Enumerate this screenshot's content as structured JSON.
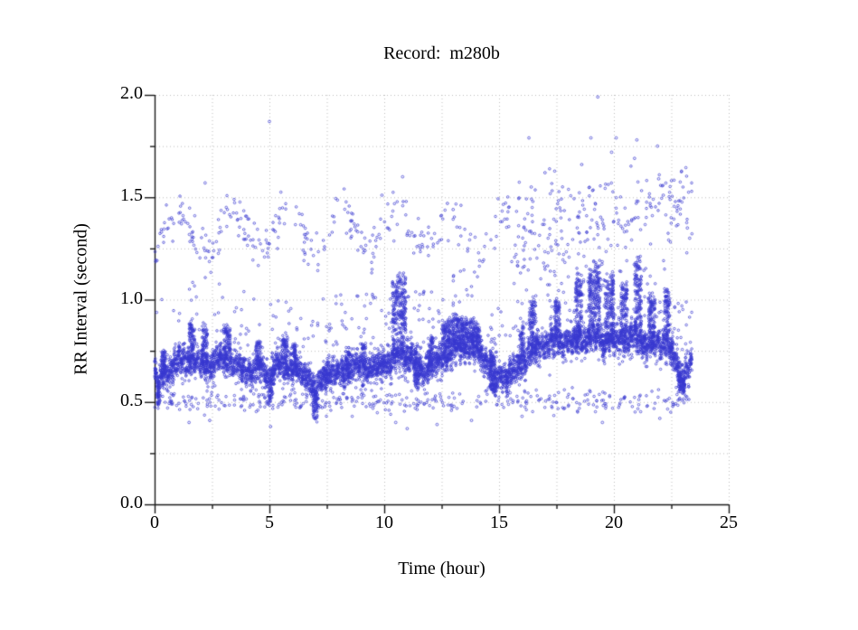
{
  "title": "Record:  m280b",
  "axes": {
    "xlabel": "Time (hour)",
    "ylabel": "RR Interval (second)",
    "xlim": [
      0,
      25
    ],
    "ylim": [
      0,
      2
    ],
    "x_ticks_major": [
      0,
      5,
      10,
      15,
      20,
      25
    ],
    "x_tick_labels": [
      "0",
      "5",
      "10",
      "15",
      "20",
      "25"
    ],
    "x_minor_step": 2.5,
    "y_ticks_major": [
      0,
      0.5,
      1,
      1.5,
      2
    ],
    "y_tick_labels": [
      "0.0",
      "0.5",
      "1.0",
      "1.5",
      "2.0"
    ],
    "y_minor_step": 0.25,
    "grid": "dotted lines at every major and minor tick"
  },
  "colors": {
    "background": "#ffffff",
    "axis": "#1a1a1a",
    "grid": "#bdbdbd",
    "marker": "#3838d0",
    "text": "#000000"
  },
  "chart_data": {
    "type": "scatter",
    "title": "Record:  m280b",
    "xlabel": "Time (hour)",
    "ylabel": "RR Interval (second)",
    "xlim": [
      0,
      25
    ],
    "ylim": [
      0,
      2
    ],
    "t_start": 0,
    "t_end": 23.4,
    "marker": {
      "shape": "open-circle",
      "radius_px": 1.25,
      "color": "#3838d0"
    },
    "description": "24-hour RR-interval tachogram: dense band around 0.6-0.8 s, sparse ectopic cloud near 1.2-1.5 s, sparse short-interval cloud near 0.5 s",
    "band": {
      "count": 6500,
      "sigma": 0.033,
      "profile": [
        [
          0,
          0.64
        ],
        [
          0.15,
          0.57
        ],
        [
          0.3,
          0.62
        ],
        [
          0.7,
          0.67
        ],
        [
          1.2,
          0.7
        ],
        [
          1.7,
          0.71
        ],
        [
          2.2,
          0.67
        ],
        [
          2.7,
          0.7
        ],
        [
          3.2,
          0.71
        ],
        [
          3.7,
          0.67
        ],
        [
          4.2,
          0.65
        ],
        [
          4.7,
          0.67
        ],
        [
          5.0,
          0.61
        ],
        [
          5.3,
          0.68
        ],
        [
          5.8,
          0.67
        ],
        [
          6.3,
          0.65
        ],
        [
          6.8,
          0.61
        ],
        [
          7.0,
          0.53
        ],
        [
          7.2,
          0.6
        ],
        [
          7.5,
          0.65
        ],
        [
          8.0,
          0.64
        ],
        [
          8.5,
          0.66
        ],
        [
          9.0,
          0.66
        ],
        [
          9.5,
          0.67
        ],
        [
          10.0,
          0.69
        ],
        [
          10.4,
          0.71
        ],
        [
          10.7,
          0.73
        ],
        [
          11.1,
          0.73
        ],
        [
          11.5,
          0.66
        ],
        [
          12.0,
          0.67
        ],
        [
          12.5,
          0.71
        ],
        [
          13.0,
          0.76
        ],
        [
          13.5,
          0.77
        ],
        [
          14.0,
          0.76
        ],
        [
          14.4,
          0.7
        ],
        [
          14.8,
          0.62
        ],
        [
          15.3,
          0.63
        ],
        [
          15.8,
          0.66
        ],
        [
          16.3,
          0.73
        ],
        [
          16.8,
          0.78
        ],
        [
          17.3,
          0.79
        ],
        [
          17.8,
          0.8
        ],
        [
          18.3,
          0.79
        ],
        [
          18.8,
          0.81
        ],
        [
          19.3,
          0.82
        ],
        [
          19.8,
          0.8
        ],
        [
          20.3,
          0.81
        ],
        [
          20.8,
          0.82
        ],
        [
          21.3,
          0.79
        ],
        [
          21.8,
          0.78
        ],
        [
          22.3,
          0.8
        ],
        [
          22.7,
          0.69
        ],
        [
          23.0,
          0.62
        ],
        [
          23.2,
          0.65
        ],
        [
          23.4,
          0.7
        ]
      ]
    },
    "spikes": [
      [
        0.3,
        0.5,
        0.15
      ],
      [
        1.5,
        1.75,
        0.2
      ],
      [
        2.05,
        2.3,
        0.22
      ],
      [
        3.0,
        3.3,
        0.18
      ],
      [
        4.4,
        4.6,
        0.14
      ],
      [
        5.55,
        5.8,
        0.16
      ],
      [
        6.0,
        6.2,
        0.14
      ],
      [
        8.3,
        8.5,
        0.12
      ],
      [
        9.0,
        9.2,
        0.14
      ],
      [
        10.35,
        10.95,
        0.42
      ],
      [
        11.9,
        12.15,
        0.16
      ],
      [
        12.5,
        13.3,
        0.18
      ],
      [
        13.3,
        14.2,
        0.15
      ],
      [
        14.6,
        14.8,
        0.12
      ],
      [
        15.9,
        16.1,
        0.2
      ],
      [
        16.3,
        16.6,
        0.28
      ],
      [
        17.4,
        17.65,
        0.22
      ],
      [
        18.3,
        18.6,
        0.35
      ],
      [
        18.9,
        19.4,
        0.38
      ],
      [
        19.6,
        20.0,
        0.35
      ],
      [
        20.3,
        20.6,
        0.3
      ],
      [
        20.9,
        21.2,
        0.42
      ],
      [
        21.5,
        21.8,
        0.26
      ],
      [
        22.2,
        22.45,
        0.3
      ],
      [
        0.1,
        0.25,
        -0.12
      ],
      [
        5.0,
        5.15,
        -0.13
      ],
      [
        6.9,
        7.1,
        -0.16
      ],
      [
        11.3,
        11.5,
        -0.12
      ],
      [
        14.6,
        14.9,
        -0.1
      ],
      [
        19.5,
        19.6,
        -0.15
      ],
      [
        22.8,
        23.1,
        -0.1
      ]
    ],
    "upper_cloud": {
      "count_early": 300,
      "t_split": 15.5,
      "wave_base": 1.33,
      "wave_amp": 0.1,
      "wave_period": 2.4,
      "wave_phase": 0.4,
      "wave_sigma": 0.055,
      "count_late": 240,
      "late_base": 1.26,
      "late_slope": 0.03,
      "late_sigma": 0.12,
      "clip": [
        0.95,
        1.85
      ]
    },
    "mid_scatter": {
      "count": 260,
      "lo": 0.12,
      "hi": 0.38,
      "late_bias": 0.75
    },
    "lower_cloud": {
      "count": 380,
      "base": 0.5,
      "sigma": 0.028,
      "clip": [
        0.43,
        0.57
      ]
    },
    "outlier_points": [
      [
        5.0,
        1.87
      ],
      [
        19.3,
        1.99
      ],
      [
        2.2,
        1.57
      ],
      [
        10.8,
        1.6
      ],
      [
        9.9,
        1.51
      ],
      [
        16.3,
        1.79
      ],
      [
        19.0,
        1.79
      ],
      [
        20.1,
        1.79
      ],
      [
        21.0,
        1.78
      ],
      [
        21.9,
        1.75
      ],
      [
        20.9,
        1.69
      ],
      [
        18.6,
        1.66
      ],
      [
        17.0,
        1.62
      ],
      [
        19.9,
        1.72
      ],
      [
        16.4,
        1.55
      ],
      [
        21.95,
        1.59
      ],
      [
        22.15,
        1.51
      ],
      [
        12.75,
        1.47
      ],
      [
        13.0,
        1.44
      ],
      [
        23.2,
        1.35
      ],
      [
        23.3,
        1.3
      ],
      [
        0.15,
        1.26
      ],
      [
        0.3,
        1.33
      ],
      [
        1.5,
        0.4
      ],
      [
        2.4,
        0.41
      ],
      [
        5.05,
        0.38
      ],
      [
        10.5,
        0.4
      ],
      [
        11.0,
        0.37
      ],
      [
        13.8,
        0.41
      ],
      [
        19.5,
        0.4
      ],
      [
        22.0,
        0.42
      ],
      [
        6.9,
        0.44
      ],
      [
        16.0,
        0.43
      ],
      [
        12.3,
        0.39
      ]
    ]
  }
}
